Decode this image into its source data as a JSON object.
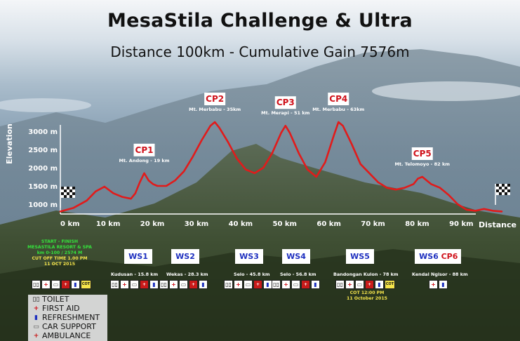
{
  "title": "MesaStila Challenge & Ultra",
  "subtitle": "Distance 100km - Cumulative Gain 7576m",
  "chart_data": {
    "type": "line",
    "xlabel": "Distance",
    "ylabel": "Elevation",
    "xlim": [
      0,
      100
    ],
    "ylim": [
      700,
      3300
    ],
    "x_ticks": [
      "0 km",
      "10 km",
      "20 km",
      "30 km",
      "40 km",
      "50 km",
      "60 km",
      "70 km",
      "80 km",
      "90 km"
    ],
    "x_tick_values": [
      0,
      10,
      20,
      30,
      40,
      50,
      60,
      70,
      80,
      90
    ],
    "y_ticks": [
      "1000 m",
      "1500 m",
      "2000 m",
      "2500 m",
      "3000 m"
    ],
    "y_tick_values": [
      1000,
      1500,
      2000,
      2500,
      3000
    ],
    "grid": false,
    "line_color": "#e11b1b",
    "series": [
      {
        "x": [
          0,
          3,
          6,
          8,
          10,
          12,
          14,
          16,
          17,
          18,
          19,
          20,
          21,
          22,
          24,
          26,
          28,
          30,
          32,
          34,
          35,
          36,
          38,
          40,
          42,
          44,
          46,
          48,
          50,
          51,
          52,
          54,
          56,
          58,
          60,
          62,
          63,
          64,
          66,
          68,
          70,
          72,
          74,
          76,
          78,
          80,
          81,
          82,
          83,
          84,
          86,
          88,
          90,
          92,
          94,
          96,
          98,
          100
        ],
        "y": [
          800,
          900,
          1100,
          1350,
          1480,
          1300,
          1200,
          1150,
          1300,
          1600,
          1850,
          1650,
          1550,
          1500,
          1500,
          1650,
          1900,
          2300,
          2750,
          3150,
          3250,
          3100,
          2700,
          2250,
          1950,
          1850,
          2000,
          2400,
          2950,
          3150,
          2950,
          2400,
          1950,
          1750,
          2150,
          2900,
          3250,
          3150,
          2650,
          2100,
          1850,
          1600,
          1450,
          1400,
          1450,
          1550,
          1700,
          1750,
          1650,
          1550,
          1450,
          1250,
          1000,
          850,
          820,
          870,
          820,
          800
        ]
      }
    ],
    "checkpoints": [
      {
        "name": "CP1",
        "label": "Mt. Andong - 19 km",
        "km": 19,
        "elev": 1850
      },
      {
        "name": "CP2",
        "label": "Mt. Merbabu - 35km",
        "km": 35,
        "elev": 3250
      },
      {
        "name": "CP3",
        "label": "Mt. Merapi - 51 km",
        "km": 51,
        "elev": 3150
      },
      {
        "name": "CP4",
        "label": "Mt. Merbabu - 63km",
        "km": 63,
        "elev": 3250
      },
      {
        "name": "CP5",
        "label": "Mt. Telomoyo - 82 km",
        "km": 82,
        "elev": 1750
      }
    ]
  },
  "start": {
    "line1": "START - FINISH",
    "line2": "MESASTILA RESORT & SPA",
    "line3": "km 0-100 / 2574 M",
    "line4": "CUT OFF TIME 1.00 PM",
    "line5": "11 OCT 2015"
  },
  "water_stations": [
    {
      "name": "WS1",
      "label": "Kudusan - 15.8 km"
    },
    {
      "name": "WS2",
      "label": "Wekas - 28.3 km"
    },
    {
      "name": "WS3",
      "label": "Selo - 45.8 km"
    },
    {
      "name": "WS4",
      "label": "Selo - 56.8 km"
    },
    {
      "name": "WS5",
      "label": "Bandongan Kulon - 78 km"
    },
    {
      "name": "WS6",
      "label": "Kendal Ngisor - 88 km"
    }
  ],
  "cp6": {
    "name": "CP6"
  },
  "ws5_cutoff": {
    "line1": "COT 12:00 PM",
    "line2": "11 October 2015"
  },
  "icon_glyphs": {
    "toilet": "▯▯",
    "first_aid": "+",
    "refreshment": "▮",
    "car": "▭",
    "ambulance": "+",
    "cot": "COT"
  },
  "legend": [
    {
      "icon": "toilet-icon",
      "glyph": "▯▯",
      "label": "TOILET",
      "color": "#111111"
    },
    {
      "icon": "first-aid-icon",
      "glyph": "+",
      "label": "FIRST AID",
      "color": "#d0121b"
    },
    {
      "icon": "refreshment-icon",
      "glyph": "▮",
      "label": "REFRESHMENT",
      "color": "#1d2fbf"
    },
    {
      "icon": "car-support-icon",
      "glyph": "▭",
      "label": "CAR SUPPORT",
      "color": "#555555"
    },
    {
      "icon": "ambulance-icon",
      "glyph": "+",
      "label": "AMBULANCE",
      "color": "#c81a1a"
    }
  ]
}
